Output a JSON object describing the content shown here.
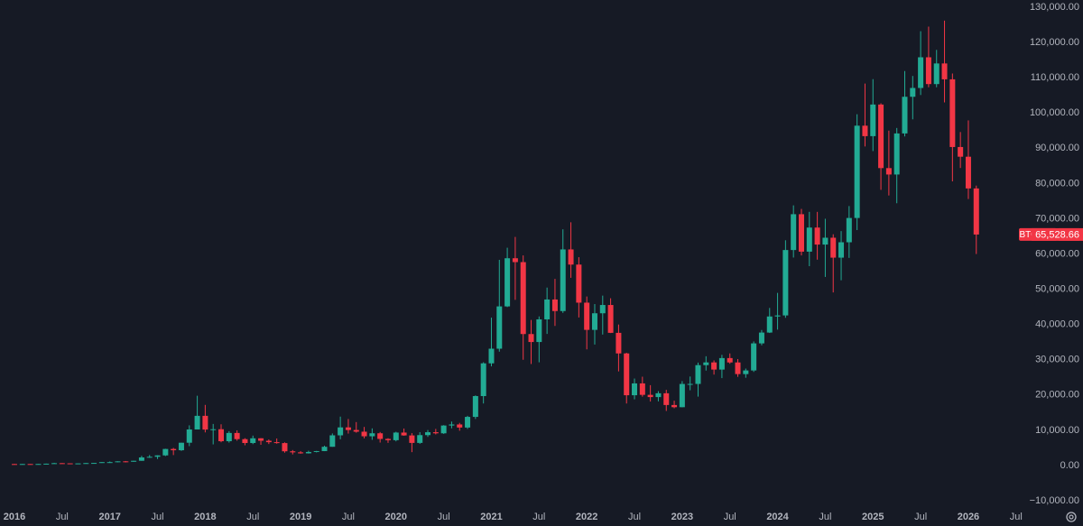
{
  "chart_data": {
    "type": "candlestick",
    "categories": [
      "2016",
      null,
      null,
      null,
      null,
      null,
      "Jul",
      null,
      null,
      null,
      null,
      null,
      "2017",
      null,
      null,
      null,
      null,
      null,
      "Jul",
      null,
      null,
      null,
      null,
      null,
      "2018",
      null,
      null,
      null,
      null,
      null,
      "Jul",
      null,
      null,
      null,
      null,
      null,
      "2019",
      null,
      null,
      null,
      null,
      null,
      "Jul",
      null,
      null,
      null,
      null,
      null,
      "2020",
      null,
      null,
      null,
      null,
      null,
      "Jul",
      null,
      null,
      null,
      null,
      null,
      "2021",
      null,
      null,
      null,
      null,
      null,
      "Jul",
      null,
      null,
      null,
      null,
      null,
      "2022",
      null,
      null,
      null,
      null,
      null,
      "Jul",
      null,
      null,
      null,
      null,
      null,
      "2023",
      null,
      null,
      null,
      null,
      null,
      "Jul",
      null,
      null,
      null,
      null,
      null,
      "2024",
      null,
      null,
      null,
      null,
      null,
      "Jul",
      null,
      null,
      null,
      null,
      null,
      "2025",
      null,
      null,
      null,
      null,
      null,
      "Jul",
      null,
      null,
      null,
      null,
      null,
      "2026",
      null,
      null,
      null,
      null,
      null,
      "Jul"
    ],
    "open": [
      430,
      368,
      437,
      416,
      448,
      531,
      673,
      624,
      575,
      609,
      700,
      742,
      964,
      970,
      1190,
      1080,
      1350,
      2300,
      2480,
      2875,
      4700,
      4340,
      6470,
      10230,
      14100,
      10200,
      10300,
      6900,
      9240,
      7490,
      6390,
      7730,
      7030,
      6630,
      6370,
      4040,
      3740,
      3460,
      3850,
      4100,
      5320,
      8570,
      10820,
      10080,
      9600,
      8300,
      9150,
      7550,
      7190,
      9350,
      8540,
      6420,
      8630,
      9450,
      9140,
      11350,
      11650,
      10780,
      13800,
      19700,
      28990,
      33140,
      45140,
      58800,
      57700,
      37300,
      35040,
      41460,
      47100,
      43820,
      61300,
      57000,
      46200,
      38480,
      43190,
      45540,
      37640,
      31800,
      19940,
      23300,
      20050,
      19420,
      20500,
      17170,
      16550,
      23140,
      23150,
      28480,
      29250,
      27220,
      30480,
      29240,
      25940,
      26970,
      34650,
      37720,
      42280,
      42580,
      61130,
      71290,
      60670,
      67500,
      62680,
      64620,
      58970,
      63330,
      70220,
      96400,
      93430,
      102400,
      84370,
      82550,
      94200,
      104600,
      107100,
      115800,
      108200,
      114050,
      109550,
      90350,
      87600,
      78600,
      null,
      null,
      null,
      null,
      null
    ],
    "high": [
      463,
      448,
      440,
      467,
      550,
      780,
      700,
      625,
      630,
      720,
      755,
      980,
      1150,
      1210,
      1290,
      1350,
      2760,
      2990,
      2900,
      4760,
      5000,
      6470,
      11400,
      19800,
      17200,
      11800,
      11700,
      9750,
      9990,
      7760,
      8490,
      7760,
      7400,
      7680,
      6580,
      4400,
      4100,
      4200,
      4150,
      5630,
      9100,
      13880,
      13200,
      12330,
      10950,
      10540,
      9510,
      7750,
      9580,
      10500,
      9190,
      9470,
      10080,
      10390,
      11450,
      12480,
      12090,
      14100,
      19900,
      29300,
      41950,
      58350,
      61780,
      64850,
      59600,
      41300,
      42300,
      50480,
      52950,
      67000,
      69000,
      59100,
      47950,
      45800,
      48200,
      47450,
      40000,
      31990,
      24680,
      25200,
      22800,
      21100,
      21470,
      18390,
      23950,
      25250,
      29200,
      31000,
      29820,
      31400,
      31800,
      30200,
      27500,
      35200,
      38450,
      44700,
      48970,
      63900,
      73800,
      72800,
      71960,
      71950,
      70000,
      65600,
      66500,
      73600,
      99650,
      108350,
      109600,
      102750,
      95000,
      95750,
      111900,
      110500,
      123200,
      124500,
      117900,
      126200,
      111200,
      94600,
      97900,
      79400,
      null,
      null,
      null,
      null,
      null
    ],
    "low": [
      350,
      365,
      395,
      414,
      440,
      525,
      605,
      535,
      570,
      605,
      680,
      740,
      750,
      920,
      890,
      1060,
      1350,
      2200,
      1840,
      2690,
      2970,
      4150,
      5500,
      10230,
      9400,
      6000,
      6600,
      6500,
      7050,
      5750,
      6070,
      5880,
      6100,
      6200,
      3650,
      3150,
      3350,
      3400,
      3730,
      4080,
      5320,
      7450,
      9060,
      9320,
      7710,
      7300,
      6520,
      6430,
      6860,
      8450,
      3800,
      6150,
      8120,
      8830,
      8980,
      10550,
      9870,
      10380,
      13200,
      17600,
      28130,
      32300,
      44950,
      47000,
      30000,
      28800,
      29280,
      37330,
      39600,
      43300,
      53250,
      42000,
      32950,
      34320,
      37160,
      37580,
      26700,
      17600,
      18780,
      19540,
      18150,
      18200,
      15480,
      16250,
      16500,
      21350,
      19550,
      26940,
      25800,
      24800,
      28860,
      25160,
      24900,
      26550,
      34100,
      37600,
      38550,
      41900,
      59000,
      59600,
      56550,
      58400,
      53500,
      49100,
      52550,
      58900,
      66800,
      90500,
      89200,
      78200,
      76600,
      74400,
      93350,
      98200,
      105100,
      107300,
      107300,
      103000,
      80600,
      84400,
      75600,
      60000,
      null,
      null,
      null,
      null,
      null
    ],
    "close": [
      368,
      437,
      416,
      448,
      531,
      673,
      624,
      575,
      609,
      700,
      742,
      964,
      970,
      1190,
      1080,
      1350,
      2300,
      2480,
      2875,
      4700,
      4340,
      6470,
      10230,
      14100,
      10200,
      10300,
      6900,
      9240,
      7490,
      6390,
      7730,
      7030,
      6630,
      6370,
      4040,
      3740,
      3460,
      3850,
      4100,
      5320,
      8570,
      10820,
      10080,
      9600,
      8300,
      9150,
      7550,
      7190,
      9350,
      8540,
      6420,
      8630,
      9450,
      9140,
      11350,
      11650,
      10780,
      13800,
      19700,
      28990,
      33140,
      45140,
      58800,
      57700,
      37300,
      35040,
      41460,
      47100,
      43820,
      61300,
      57000,
      46200,
      38480,
      43190,
      45540,
      37640,
      31800,
      19940,
      23300,
      20050,
      19420,
      20500,
      17170,
      16550,
      23140,
      23150,
      28480,
      29250,
      27220,
      30480,
      29240,
      25940,
      26970,
      34650,
      37720,
      42280,
      42580,
      61130,
      71290,
      60670,
      67500,
      62680,
      64620,
      58970,
      63330,
      70220,
      96400,
      93430,
      102400,
      84370,
      82550,
      94200,
      104600,
      107100,
      115800,
      108200,
      114050,
      109550,
      90350,
      87600,
      78600,
      65528.66,
      null,
      null,
      null,
      null,
      null
    ],
    "up_color": "#22ab94",
    "down_color": "#f23645",
    "last_price": {
      "symbol": "BTCUSD",
      "value": 65528.66,
      "label": "65,528.66"
    },
    "ylim": [
      -17150,
      132050
    ],
    "yticks": [
      {
        "value": -10000,
        "label": "−10,000.00"
      },
      {
        "value": 0,
        "label": "0.00"
      },
      {
        "value": 10000,
        "label": "10,000.00"
      },
      {
        "value": 20000,
        "label": "20,000.00"
      },
      {
        "value": 30000,
        "label": "30,000.00"
      },
      {
        "value": 40000,
        "label": "40,000.00"
      },
      {
        "value": 50000,
        "label": "50,000.00"
      },
      {
        "value": 60000,
        "label": "60,000.00"
      },
      {
        "value": 70000,
        "label": "70,000.00"
      },
      {
        "value": 80000,
        "label": "80,000.00"
      },
      {
        "value": 90000,
        "label": "90,000.00"
      },
      {
        "value": 100000,
        "label": "100,000.00"
      },
      {
        "value": 110000,
        "label": "110,000.00"
      },
      {
        "value": 120000,
        "label": "120,000.00"
      },
      {
        "value": 130000,
        "label": "130,000.00"
      }
    ],
    "grid": false
  }
}
